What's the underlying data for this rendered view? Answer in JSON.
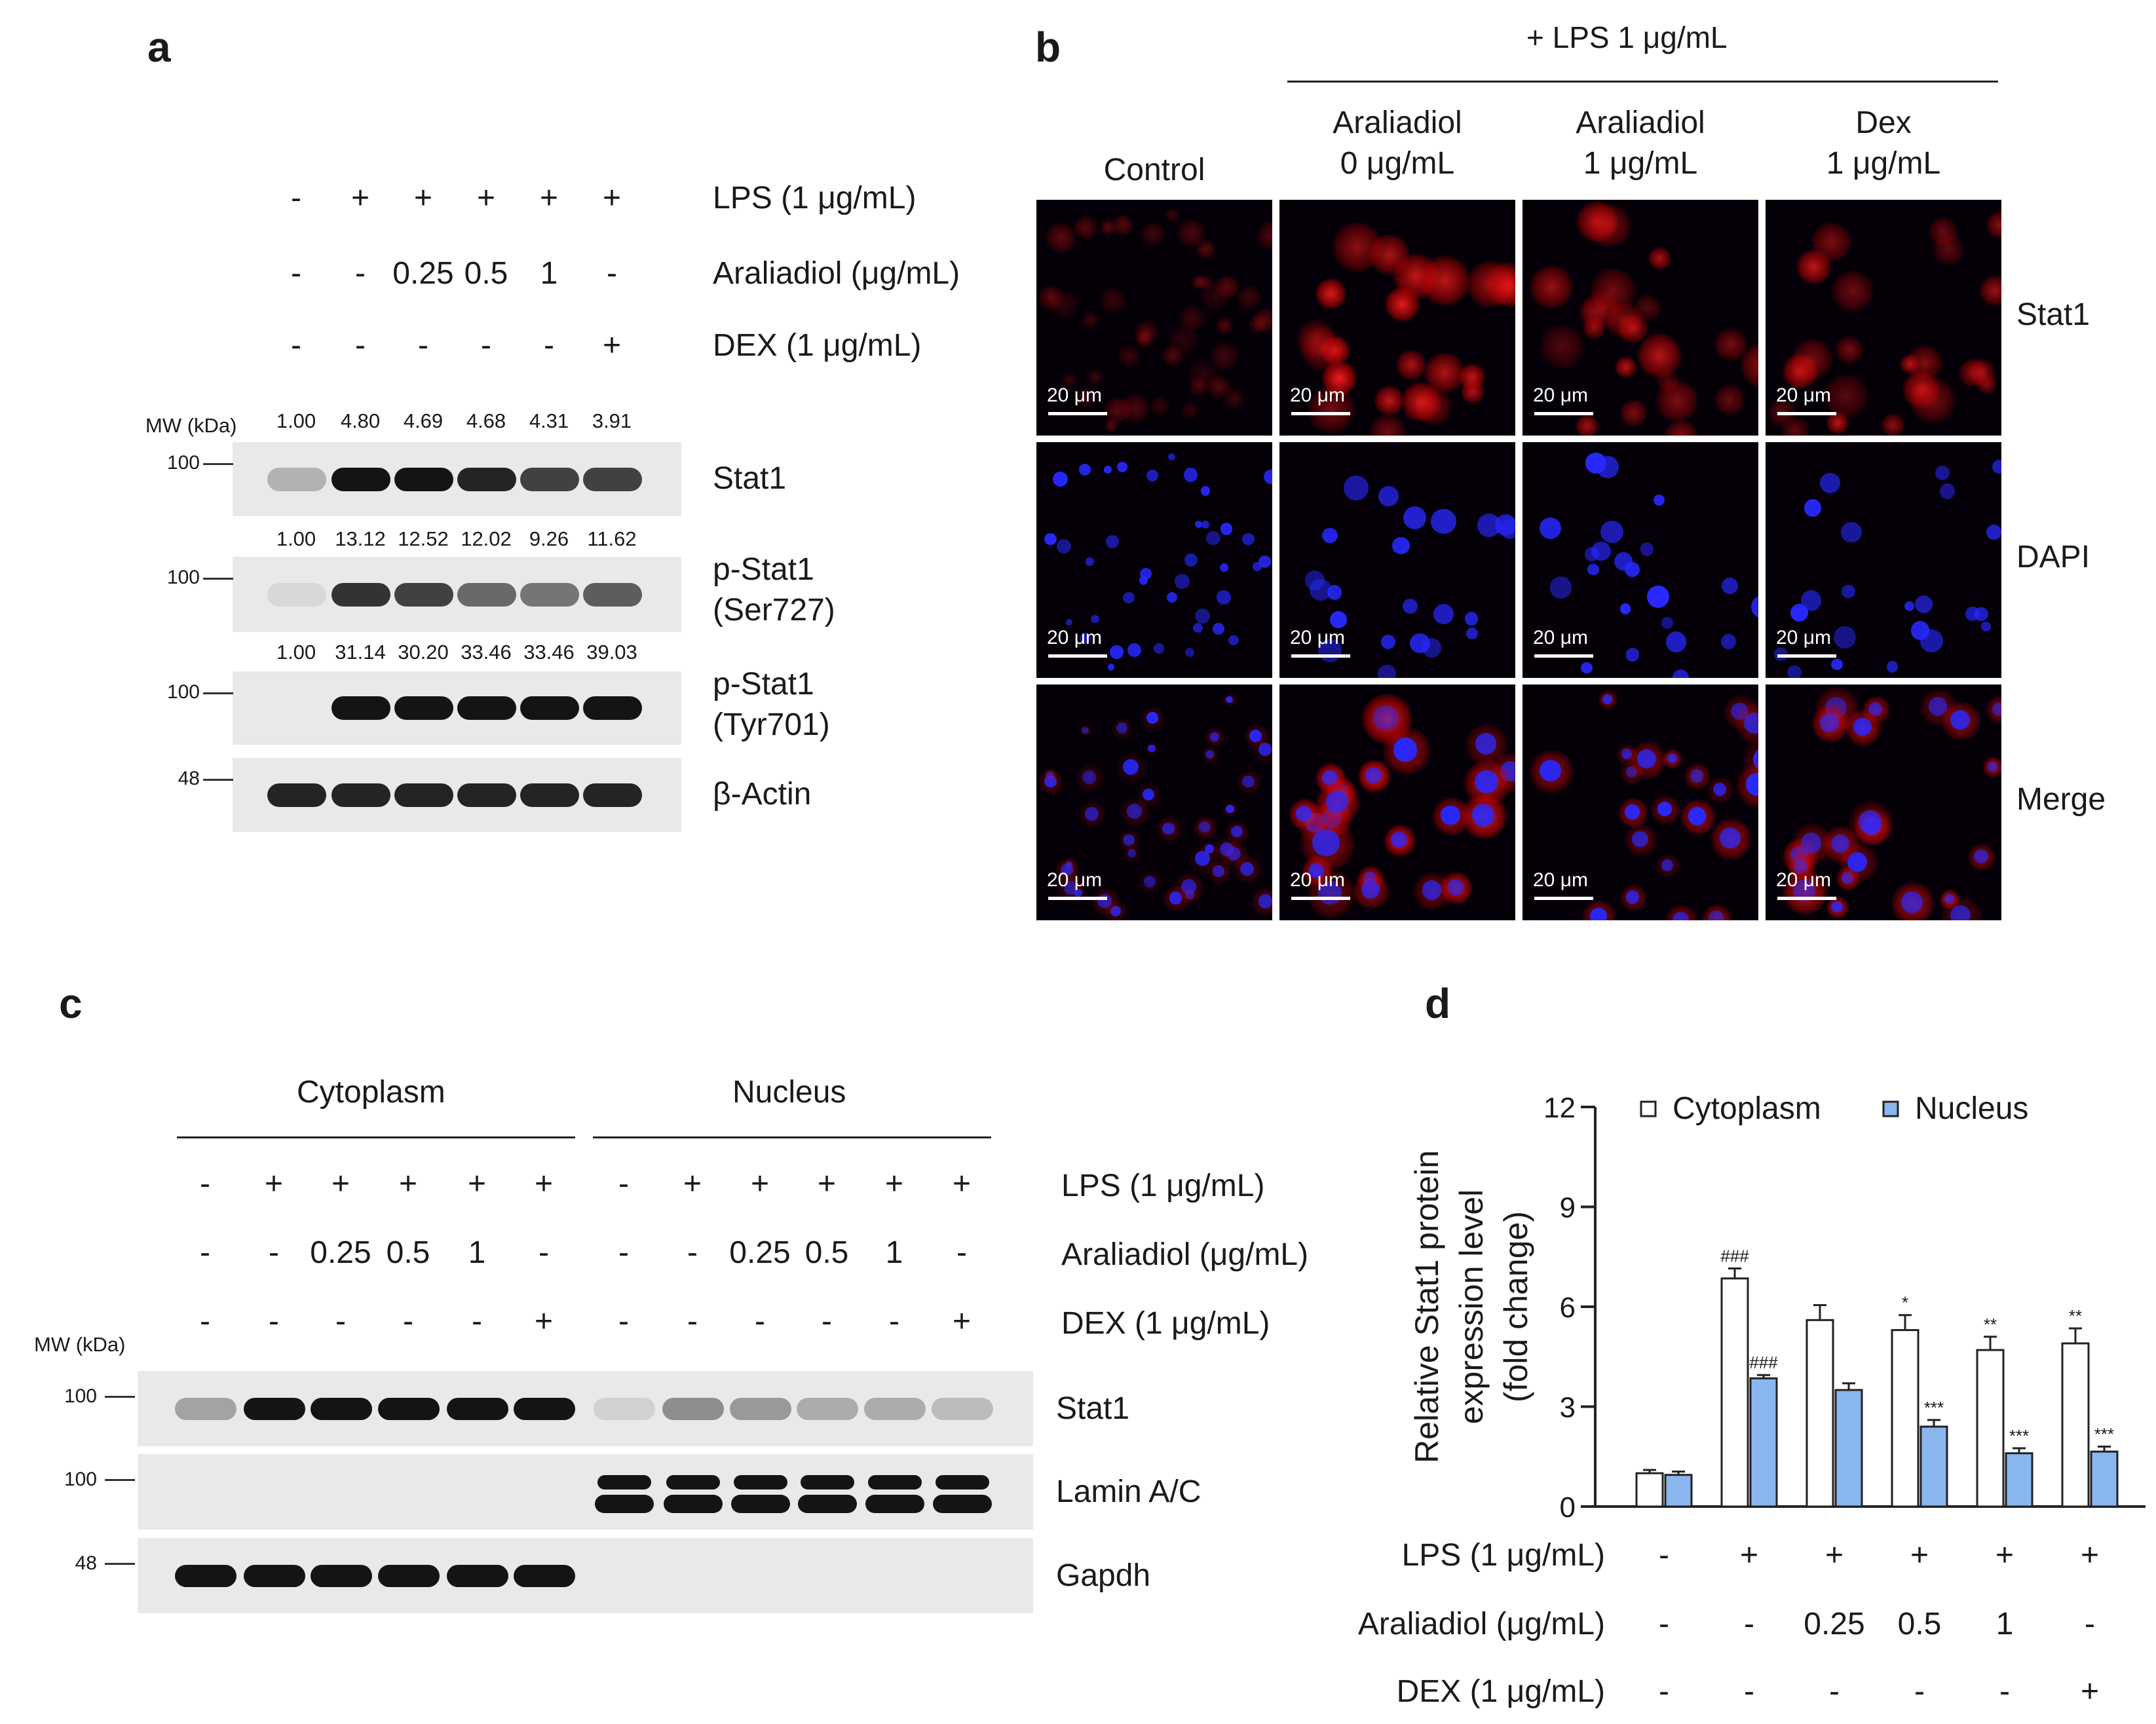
{
  "panel_a": {
    "letter": "a",
    "rows": [
      {
        "label": "LPS (1 μg/mL)",
        "values": [
          "-",
          "+",
          "+",
          "+",
          "+",
          "+"
        ]
      },
      {
        "label": "Araliadiol (μg/mL)",
        "values": [
          "-",
          "-",
          "0.25",
          "0.5",
          "1",
          "-"
        ]
      },
      {
        "label": "DEX (1 μg/mL)",
        "values": [
          "-",
          "-",
          "-",
          "-",
          "-",
          "+"
        ]
      }
    ],
    "mw_header": "MW (kDa)",
    "blots": [
      {
        "label": "Stat1",
        "mw": "100",
        "quant": [
          "1.00",
          "4.80",
          "4.69",
          "4.68",
          "4.31",
          "3.91"
        ],
        "intensity": [
          0.35,
          1,
          1,
          0.95,
          0.85,
          0.85
        ]
      },
      {
        "label": "p-Stat1\n(Ser727)",
        "mw": "100",
        "quant": [
          "1.00",
          "13.12",
          "12.52",
          "12.02",
          "9.26",
          "11.62"
        ],
        "intensity": [
          0.05,
          0.9,
          0.85,
          0.7,
          0.65,
          0.75
        ]
      },
      {
        "label": "p-Stat1\n(Tyr701)",
        "mw": "100",
        "quant": [
          "1.00",
          "31.14",
          "30.20",
          "33.46",
          "33.46",
          "39.03"
        ],
        "intensity": [
          0,
          1,
          1,
          1,
          1,
          1
        ]
      },
      {
        "label": "β-Actin",
        "mw": "48",
        "quant": [],
        "intensity": [
          0.95,
          0.95,
          0.95,
          0.95,
          0.95,
          0.95
        ]
      }
    ]
  },
  "panel_b": {
    "letter": "b",
    "treatment_header": "+ LPS 1 μg/mL",
    "columns": [
      {
        "line1": "",
        "line2": "Control"
      },
      {
        "line1": "Araliadiol",
        "line2": "0 μg/mL"
      },
      {
        "line1": "Araliadiol",
        "line2": "1 μg/mL"
      },
      {
        "line1": "Dex",
        "line2": "1 μg/mL"
      }
    ],
    "rows": [
      "Stat1",
      "DAPI",
      "Merge"
    ],
    "scale_label": "20 μm",
    "colors": {
      "stat1": "#ff1a1a",
      "dapi": "#1a1aff",
      "background": "#050008"
    }
  },
  "panel_c": {
    "letter": "c",
    "groups": [
      "Cytoplasm",
      "Nucleus"
    ],
    "rows": [
      {
        "label": "LPS (1 μg/mL)",
        "values": [
          "-",
          "+",
          "+",
          "+",
          "+",
          "+",
          "-",
          "+",
          "+",
          "+",
          "+",
          "+"
        ]
      },
      {
        "label": "Araliadiol (μg/mL)",
        "values": [
          "-",
          "-",
          "0.25",
          "0.5",
          "1",
          "-",
          "-",
          "-",
          "0.25",
          "0.5",
          "1",
          "-"
        ]
      },
      {
        "label": "DEX (1 μg/mL)",
        "values": [
          "-",
          "-",
          "-",
          "-",
          "-",
          "+",
          "-",
          "-",
          "-",
          "-",
          "-",
          "+"
        ]
      }
    ],
    "mw_header": "MW (kDa)",
    "blots": [
      {
        "label": "Stat1",
        "mw": "100",
        "intensity": [
          0.45,
          1,
          1,
          1,
          1,
          1,
          0.15,
          0.55,
          0.5,
          0.4,
          0.4,
          0.3
        ]
      },
      {
        "label": "Lamin A/C",
        "mw": "100",
        "intensity": [
          0,
          0,
          0,
          0,
          0,
          0,
          1,
          1,
          1,
          1,
          1,
          1
        ]
      },
      {
        "label": "Gapdh",
        "mw": "48",
        "intensity": [
          1,
          1,
          1,
          1,
          1,
          1,
          0,
          0,
          0,
          0,
          0,
          0
        ]
      }
    ]
  },
  "chart_data": {
    "type": "bar",
    "panel_letter": "d",
    "ylabel_lines": [
      "Relative Stat1 protein",
      "expression level",
      "(fold change)"
    ],
    "ylim": [
      0,
      12
    ],
    "yticks": [
      0,
      3,
      6,
      9,
      12
    ],
    "legend": "top",
    "categories": [
      "1",
      "2",
      "3",
      "4",
      "5",
      "6"
    ],
    "series": [
      {
        "name": "Cytoplasm",
        "color": "#ffffff",
        "values": [
          1.0,
          6.85,
          5.6,
          5.3,
          4.7,
          4.9
        ],
        "errors": [
          0.1,
          0.3,
          0.45,
          0.45,
          0.4,
          0.45
        ],
        "annotations": [
          "",
          "###",
          "",
          "*",
          "**",
          "**"
        ]
      },
      {
        "name": "Nucleus",
        "color": "#8ab6f0",
        "values": [
          0.95,
          3.85,
          3.5,
          2.4,
          1.6,
          1.65
        ],
        "errors": [
          0.1,
          0.1,
          0.2,
          0.2,
          0.15,
          0.15
        ],
        "annotations": [
          "",
          "###",
          "",
          "***",
          "***",
          "***"
        ]
      }
    ],
    "condition_rows": [
      {
        "label": "LPS (1 μg/mL)",
        "values": [
          "-",
          "+",
          "+",
          "+",
          "+",
          "+"
        ]
      },
      {
        "label": "Araliadiol (μg/mL)",
        "values": [
          "-",
          "-",
          "0.25",
          "0.5",
          "1",
          "-"
        ]
      },
      {
        "label": "DEX (1 μg/mL)",
        "values": [
          "-",
          "-",
          "-",
          "-",
          "-",
          "+"
        ]
      }
    ]
  }
}
